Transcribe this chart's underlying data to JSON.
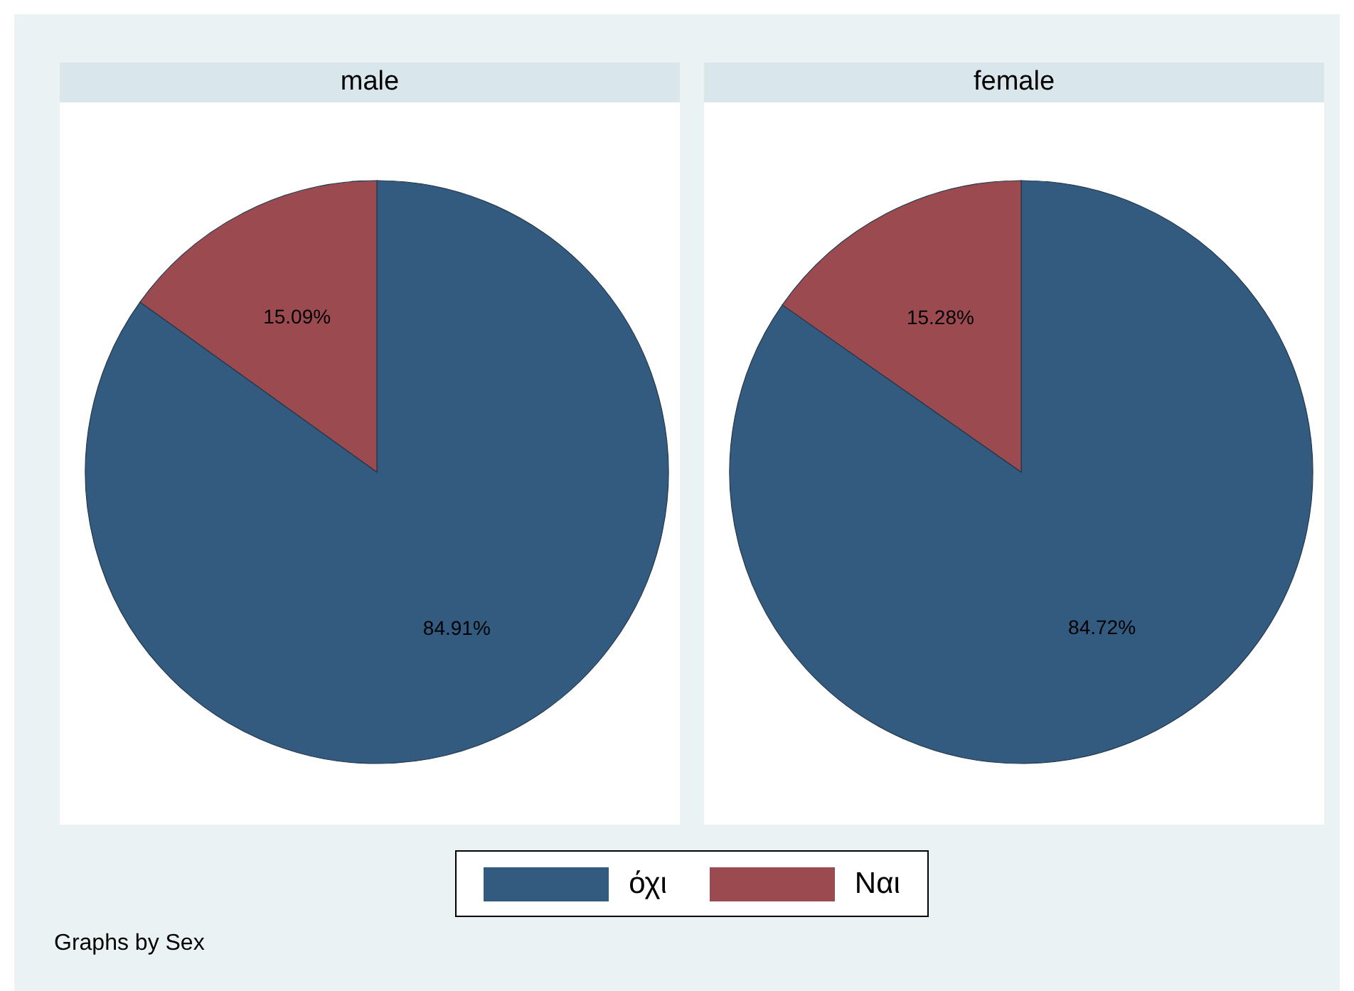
{
  "chart_data": [
    {
      "type": "pie",
      "title": "male",
      "categories": [
        "όχι",
        "Ναι"
      ],
      "values": [
        84.91,
        15.09
      ],
      "colors": [
        "#335a7f",
        "#9b4a4f"
      ],
      "value_labels": [
        "84.91%",
        "15.09%"
      ],
      "legend": "bottom",
      "annotations": [
        "Graphs by Sex"
      ]
    },
    {
      "type": "pie",
      "title": "female",
      "categories": [
        null,
        null
      ],
      "values": [
        84.72,
        15.28
      ],
      "colors": [
        "#335a7f",
        "#9b4a4f"
      ],
      "value_labels": [
        "84.72%",
        "15.28%"
      ]
    }
  ]
}
